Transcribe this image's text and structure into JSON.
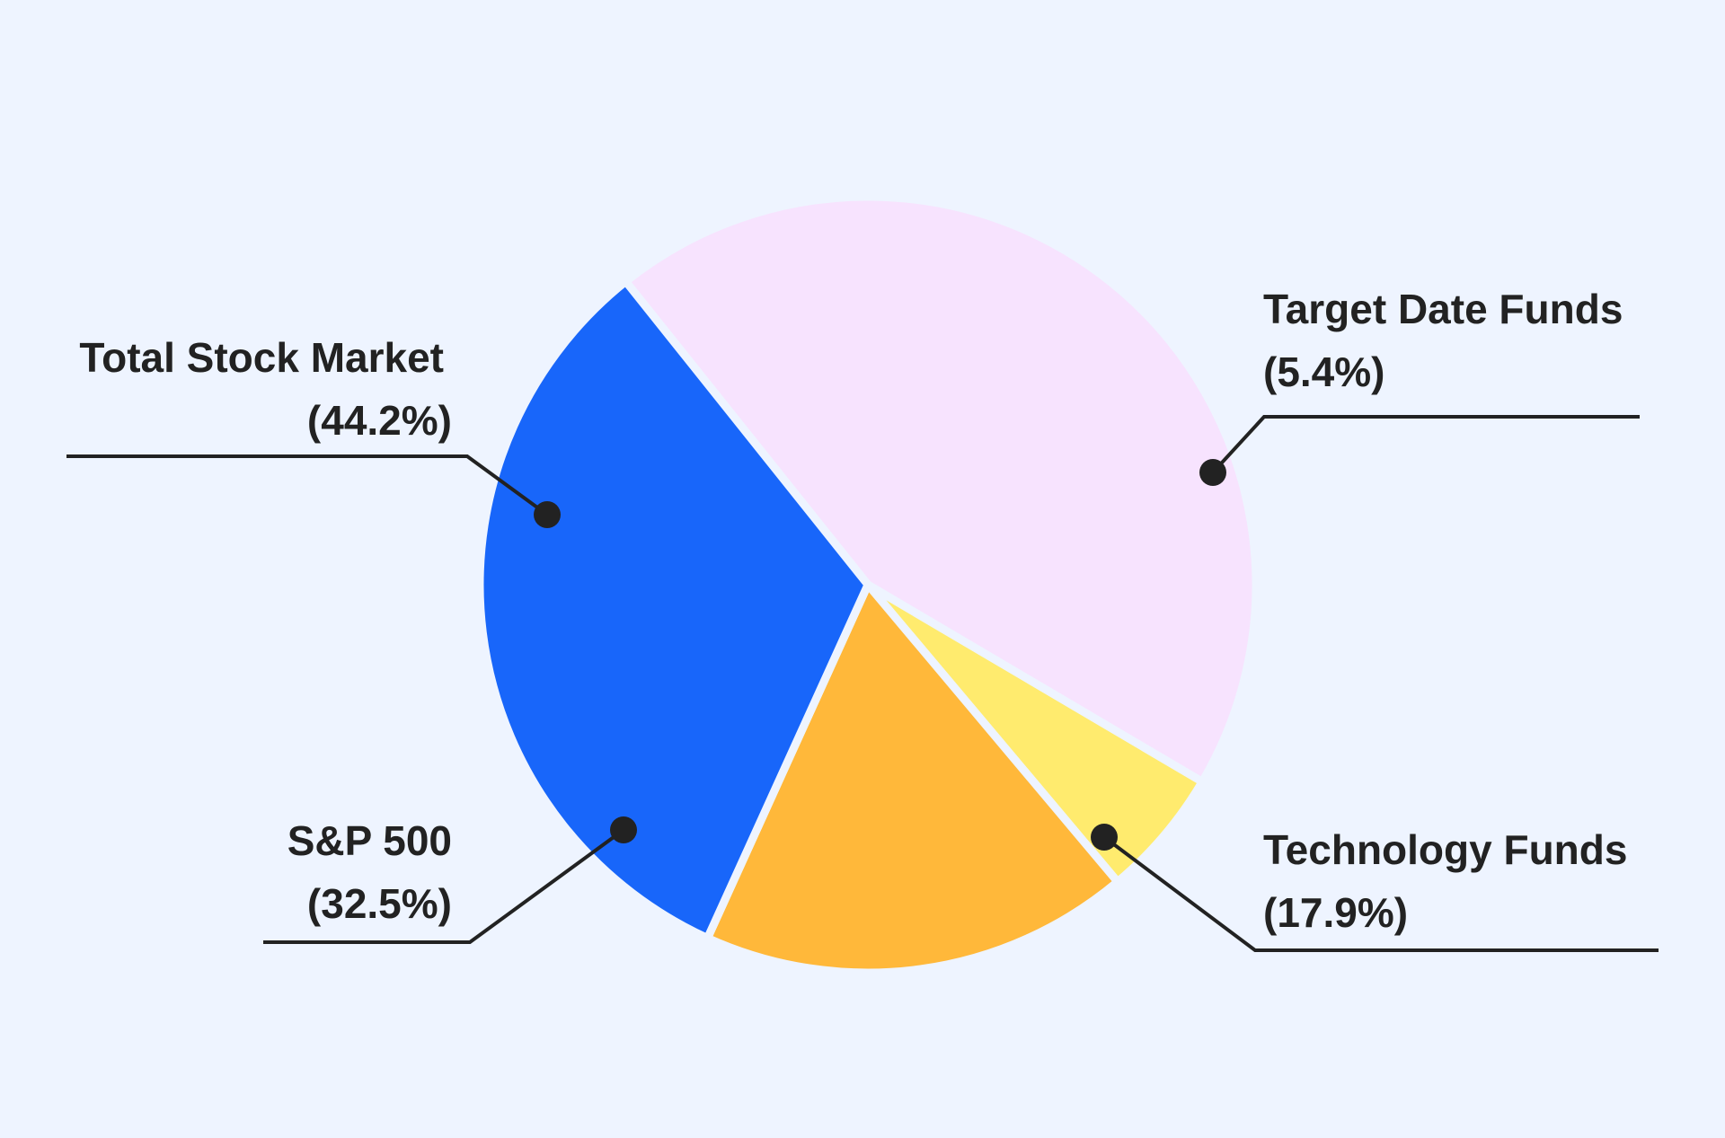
{
  "chart_data": {
    "type": "pie",
    "background": "#eef4ff",
    "slices": [
      {
        "name": "Total Stock Market",
        "value": 44.2,
        "pct_label": "(44.2%)",
        "color": "#f7e3fe"
      },
      {
        "name": "Target Date Funds",
        "value": 5.4,
        "pct_label": "(5.4%)",
        "color": "#ffeb6e"
      },
      {
        "name": "Technology Funds",
        "value": 17.9,
        "pct_label": "(17.9%)",
        "color": "#ffb83a"
      },
      {
        "name": "S&P 500",
        "value": 32.5,
        "pct_label": "(32.5%)",
        "color": "#1866fa"
      }
    ]
  }
}
